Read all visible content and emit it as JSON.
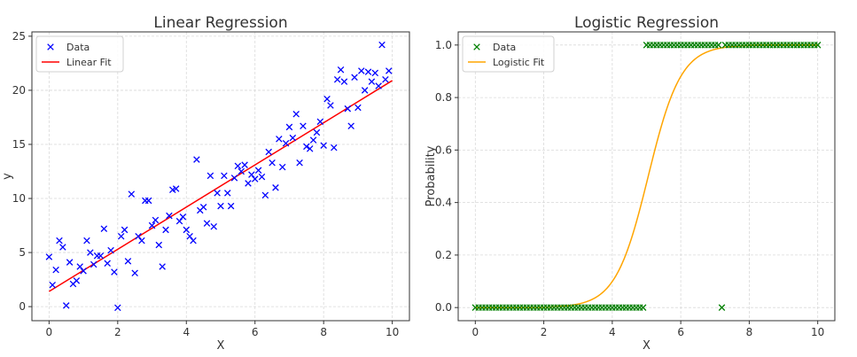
{
  "chart_data": [
    {
      "type": "scatter",
      "title": "Linear Regression",
      "xlabel": "X",
      "ylabel": "y",
      "xlim": [
        -0.5,
        10.5
      ],
      "ylim": [
        -1.3,
        25.4
      ],
      "xticks": [
        0,
        2,
        4,
        6,
        8,
        10
      ],
      "yticks": [
        0,
        5,
        10,
        15,
        20,
        25
      ],
      "ytick_format": "int",
      "grid": true,
      "legend_position": "top-left",
      "colors": {
        "data": "#0000ff",
        "fit": "#ff0000"
      },
      "series": [
        {
          "name": "Data",
          "kind": "scatter",
          "marker": "x",
          "points": [
            [
              0.0,
              4.6
            ],
            [
              0.1,
              2.0
            ],
            [
              0.2,
              3.4
            ],
            [
              0.3,
              6.1
            ],
            [
              0.4,
              5.5
            ],
            [
              0.5,
              0.1
            ],
            [
              0.6,
              4.1
            ],
            [
              0.7,
              2.1
            ],
            [
              0.8,
              2.4
            ],
            [
              0.9,
              3.7
            ],
            [
              1.0,
              3.3
            ],
            [
              1.1,
              6.1
            ],
            [
              1.2,
              5.0
            ],
            [
              1.3,
              3.9
            ],
            [
              1.4,
              4.7
            ],
            [
              1.5,
              4.7
            ],
            [
              1.6,
              7.2
            ],
            [
              1.7,
              4.0
            ],
            [
              1.8,
              5.2
            ],
            [
              1.9,
              3.2
            ],
            [
              2.0,
              -0.1
            ],
            [
              2.1,
              6.5
            ],
            [
              2.2,
              7.1
            ],
            [
              2.3,
              4.2
            ],
            [
              2.4,
              10.4
            ],
            [
              2.5,
              3.1
            ],
            [
              2.6,
              6.5
            ],
            [
              2.7,
              6.1
            ],
            [
              2.8,
              9.8
            ],
            [
              2.9,
              9.8
            ],
            [
              3.0,
              7.5
            ],
            [
              3.1,
              8.0
            ],
            [
              3.2,
              5.7
            ],
            [
              3.3,
              3.7
            ],
            [
              3.4,
              7.1
            ],
            [
              3.5,
              8.4
            ],
            [
              3.6,
              10.8
            ],
            [
              3.7,
              10.9
            ],
            [
              3.8,
              7.9
            ],
            [
              3.9,
              8.3
            ],
            [
              4.0,
              7.1
            ],
            [
              4.1,
              6.5
            ],
            [
              4.2,
              6.1
            ],
            [
              4.3,
              13.6
            ],
            [
              4.4,
              8.9
            ],
            [
              4.5,
              9.2
            ],
            [
              4.6,
              7.7
            ],
            [
              4.7,
              12.1
            ],
            [
              4.8,
              7.4
            ],
            [
              4.9,
              10.5
            ],
            [
              5.0,
              9.3
            ],
            [
              5.1,
              12.1
            ],
            [
              5.2,
              10.5
            ],
            [
              5.3,
              9.3
            ],
            [
              5.4,
              11.9
            ],
            [
              5.5,
              13.0
            ],
            [
              5.6,
              12.5
            ],
            [
              5.7,
              13.1
            ],
            [
              5.8,
              11.4
            ],
            [
              5.9,
              12.2
            ],
            [
              6.0,
              11.8
            ],
            [
              6.1,
              12.6
            ],
            [
              6.2,
              12.0
            ],
            [
              6.3,
              10.3
            ],
            [
              6.4,
              14.3
            ],
            [
              6.5,
              13.3
            ],
            [
              6.6,
              11.0
            ],
            [
              6.7,
              15.5
            ],
            [
              6.8,
              12.9
            ],
            [
              6.9,
              15.1
            ],
            [
              7.0,
              16.6
            ],
            [
              7.1,
              15.6
            ],
            [
              7.2,
              17.8
            ],
            [
              7.3,
              13.3
            ],
            [
              7.4,
              16.7
            ],
            [
              7.5,
              14.8
            ],
            [
              7.6,
              14.6
            ],
            [
              7.7,
              15.4
            ],
            [
              7.8,
              16.1
            ],
            [
              7.9,
              17.1
            ],
            [
              8.0,
              14.9
            ],
            [
              8.1,
              19.2
            ],
            [
              8.2,
              18.6
            ],
            [
              8.3,
              14.7
            ],
            [
              8.4,
              21.0
            ],
            [
              8.5,
              21.9
            ],
            [
              8.6,
              20.8
            ],
            [
              8.7,
              18.3
            ],
            [
              8.8,
              16.7
            ],
            [
              8.9,
              21.2
            ],
            [
              9.0,
              18.4
            ],
            [
              9.1,
              21.8
            ],
            [
              9.2,
              20.0
            ],
            [
              9.3,
              21.7
            ],
            [
              9.4,
              20.8
            ],
            [
              9.5,
              21.6
            ],
            [
              9.6,
              20.4
            ],
            [
              9.7,
              24.2
            ],
            [
              9.8,
              21.0
            ],
            [
              9.9,
              21.8
            ]
          ]
        },
        {
          "name": "Linear Fit",
          "kind": "line",
          "points": [
            [
              0.0,
              1.4
            ],
            [
              10.0,
              20.9
            ]
          ]
        }
      ]
    },
    {
      "type": "scatter",
      "title": "Logistic Regression",
      "xlabel": "X",
      "ylabel": "Probability",
      "xlim": [
        -0.5,
        10.5
      ],
      "ylim": [
        -0.05,
        1.05
      ],
      "xticks": [
        0,
        2,
        4,
        6,
        8,
        10
      ],
      "yticks": [
        0.0,
        0.2,
        0.4,
        0.6,
        0.8,
        1.0
      ],
      "ytick_format": "one_decimal",
      "grid": true,
      "legend_position": "top-left",
      "colors": {
        "data": "#008000",
        "fit": "#ffa500"
      },
      "series": [
        {
          "name": "Data",
          "kind": "scatter",
          "marker": "x",
          "x_start": 0.0,
          "x_step": 0.1,
          "y": [
            0,
            0,
            0,
            0,
            0,
            0,
            0,
            0,
            0,
            0,
            0,
            0,
            0,
            0,
            0,
            0,
            0,
            0,
            0,
            0,
            0,
            0,
            0,
            0,
            0,
            0,
            0,
            0,
            0,
            0,
            0,
            0,
            0,
            0,
            0,
            0,
            0,
            0,
            0,
            0,
            0,
            0,
            0,
            0,
            0,
            0,
            0,
            0,
            0,
            0,
            1,
            1,
            1,
            1,
            1,
            1,
            1,
            1,
            1,
            1,
            1,
            1,
            1,
            1,
            1,
            1,
            1,
            1,
            1,
            1,
            1,
            1,
            0,
            1,
            1,
            1,
            1,
            1,
            1,
            1,
            1,
            1,
            1,
            1,
            1,
            1,
            1,
            1,
            1,
            1,
            1,
            1,
            1,
            1,
            1,
            1,
            1,
            1,
            1,
            1,
            1
          ]
        },
        {
          "name": "Logistic Fit",
          "kind": "line",
          "curve": "sigmoid",
          "midpoint": 5.05,
          "steepness": 2.1
        }
      ]
    }
  ]
}
